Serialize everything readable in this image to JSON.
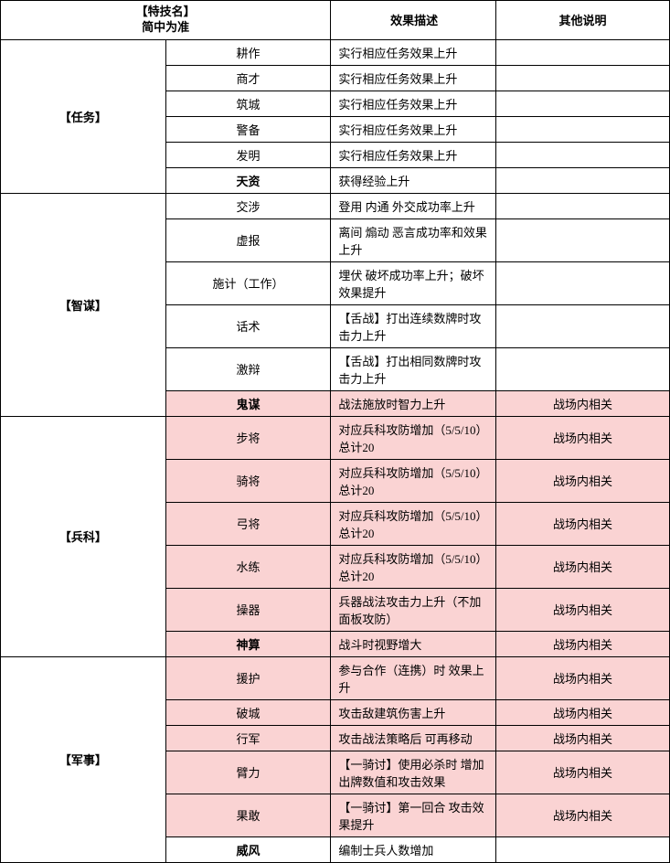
{
  "headers": {
    "skill": "【特技名】\n简中为准",
    "effect": "效果描述",
    "note": "其他说明"
  },
  "groups": [
    {
      "category": "【任务】",
      "rows": [
        {
          "name": "耕作",
          "effect": "实行相应任务效果上升",
          "note": "",
          "hl": false,
          "bold": false
        },
        {
          "name": "商才",
          "effect": "实行相应任务效果上升",
          "note": "",
          "hl": false,
          "bold": false
        },
        {
          "name": "筑城",
          "effect": "实行相应任务效果上升",
          "note": "",
          "hl": false,
          "bold": false
        },
        {
          "name": "警备",
          "effect": "实行相应任务效果上升",
          "note": "",
          "hl": false,
          "bold": false
        },
        {
          "name": "发明",
          "effect": "实行相应任务效果上升",
          "note": "",
          "hl": false,
          "bold": false
        },
        {
          "name": "天资",
          "effect": "获得经验上升",
          "note": "",
          "hl": false,
          "bold": true
        }
      ]
    },
    {
      "category": "【智谋】",
      "rows": [
        {
          "name": "交涉",
          "effect": "登用 内通 外交成功率上升",
          "note": "",
          "hl": false,
          "bold": false
        },
        {
          "name": "虚报",
          "effect": "离间 煽动 恶言成功率和效果上升",
          "note": "",
          "hl": false,
          "bold": false
        },
        {
          "name": "施计（工作）",
          "effect": "埋伏 破坏成功率上升；破坏效果提升",
          "note": "",
          "hl": false,
          "bold": false
        },
        {
          "name": "话术",
          "effect": "【舌战】打出连续数牌时攻击力上升",
          "note": "",
          "hl": false,
          "bold": false
        },
        {
          "name": "激辩",
          "effect": "【舌战】打出相同数牌时攻击力上升",
          "note": "",
          "hl": false,
          "bold": false
        },
        {
          "name": "鬼谋",
          "effect": "战法施放时智力上升",
          "note": "战场内相关",
          "hl": true,
          "bold": true
        }
      ]
    },
    {
      "category": "【兵科】",
      "rows": [
        {
          "name": "步将",
          "effect": "对应兵科攻防增加（5/5/10）总计20",
          "note": "战场内相关",
          "hl": true,
          "bold": false
        },
        {
          "name": "骑将",
          "effect": "对应兵科攻防增加（5/5/10）总计20",
          "note": "战场内相关",
          "hl": true,
          "bold": false
        },
        {
          "name": "弓将",
          "effect": "对应兵科攻防增加（5/5/10）总计20",
          "note": "战场内相关",
          "hl": true,
          "bold": false
        },
        {
          "name": "水练",
          "effect": "对应兵科攻防增加（5/5/10）总计20",
          "note": "战场内相关",
          "hl": true,
          "bold": false
        },
        {
          "name": "操器",
          "effect": "兵器战法攻击力上升（不加面板攻防）",
          "note": "战场内相关",
          "hl": true,
          "bold": false
        },
        {
          "name": "神算",
          "effect": "战斗时视野增大",
          "note": "战场内相关",
          "hl": true,
          "bold": true
        }
      ]
    },
    {
      "category": "【军事】",
      "rows": [
        {
          "name": "援护",
          "effect": "参与合作（连携）时 效果上升",
          "note": "战场内相关",
          "hl": true,
          "bold": false
        },
        {
          "name": "破城",
          "effect": "攻击敌建筑伤害上升",
          "note": "战场内相关",
          "hl": true,
          "bold": false
        },
        {
          "name": "行军",
          "effect": "攻击战法策略后 可再移动",
          "note": "战场内相关",
          "hl": true,
          "bold": false
        },
        {
          "name": "臂力",
          "effect": "【一骑讨】使用必杀时 增加出牌数值和攻击效果",
          "note": "战场内相关",
          "hl": true,
          "bold": false
        },
        {
          "name": "果敢",
          "effect": "【一骑讨】第一回合 攻击效果提升",
          "note": "战场内相关",
          "hl": true,
          "bold": false
        },
        {
          "name": "威风",
          "effect": "编制士兵人数增加",
          "note": "",
          "hl": false,
          "bold": true
        }
      ]
    }
  ]
}
